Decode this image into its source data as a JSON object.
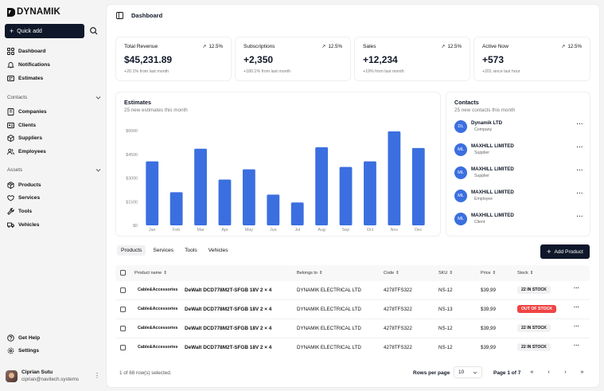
{
  "brand": {
    "name": "DYNAMIK"
  },
  "sidebar": {
    "quick_add": "Quick add",
    "items": [
      {
        "label": "Dashboard",
        "icon": "dashboard-icon"
      },
      {
        "label": "Notifications",
        "icon": "bell-icon"
      },
      {
        "label": "Estimates",
        "icon": "receipt-icon"
      }
    ],
    "contacts_section": "Contacts",
    "contacts_items": [
      {
        "label": "Companies",
        "icon": "building-icon"
      },
      {
        "label": "Clients",
        "icon": "id-card-icon"
      },
      {
        "label": "Suppliers",
        "icon": "box-icon"
      },
      {
        "label": "Employees",
        "icon": "users-icon"
      }
    ],
    "assets_section": "Assets",
    "assets_items": [
      {
        "label": "Products",
        "icon": "package-icon"
      },
      {
        "label": "Services",
        "icon": "handshake-icon"
      },
      {
        "label": "Tools",
        "icon": "wrench-icon"
      },
      {
        "label": "Vehicles",
        "icon": "truck-icon"
      }
    ],
    "bottom_items": [
      {
        "label": "Get Help",
        "icon": "help-icon"
      },
      {
        "label": "Settings",
        "icon": "gear-icon"
      }
    ],
    "user": {
      "name": "Ciprian Sutu",
      "email": "ciprian@navitech.systems"
    }
  },
  "header": {
    "title": "Dashboard"
  },
  "stats": [
    {
      "label": "Total Revenue",
      "trend": "12.5%",
      "value": "$45,231.89",
      "sub": "+20.1% from last month"
    },
    {
      "label": "Subscriptions",
      "trend": "12.5%",
      "value": "+2,350",
      "sub": "+180.1% from last month"
    },
    {
      "label": "Sales",
      "trend": "12.5%",
      "value": "+12,234",
      "sub": "+19% from last month"
    },
    {
      "label": "Active Now",
      "trend": "12.5%",
      "value": "+573",
      "sub": "+201 since last hour"
    }
  ],
  "estimates": {
    "title": "Estimates",
    "subtitle": "25 new estimates this month"
  },
  "chart_data": {
    "type": "bar",
    "categories": [
      "Jan",
      "Feb",
      "Mar",
      "Apr",
      "May",
      "Jun",
      "Jul",
      "Aug",
      "Sep",
      "Oct",
      "Nov",
      "Dec"
    ],
    "values": [
      4050,
      2100,
      4850,
      2900,
      3550,
      1950,
      1450,
      4950,
      3700,
      4050,
      5950,
      4900
    ],
    "ylim": [
      0,
      6000
    ],
    "yticks": [
      "$0",
      "$1500",
      "$3000",
      "$4500",
      "$6000"
    ],
    "color": "#3b6fe0",
    "grid": false
  },
  "contacts": {
    "title": "Contacts",
    "subtitle": "25 new contacts this month",
    "items": [
      {
        "initials": "DL",
        "name": "Dynamik LTD",
        "type": "Company"
      },
      {
        "initials": "ML",
        "name": "MAXHILL LIMITED",
        "type": "Supplier"
      },
      {
        "initials": "ML",
        "name": "MAXHILL LIMITED",
        "type": "Supplier"
      },
      {
        "initials": "ML",
        "name": "MAXHILL LIMITED",
        "type": "Employee"
      },
      {
        "initials": "ML",
        "name": "MAXHILL LIMITED",
        "type": "Client"
      }
    ]
  },
  "tabs": [
    "Products",
    "Services",
    "Tools",
    "Vehicles"
  ],
  "add_product": "Add Product",
  "table": {
    "headers": [
      "Product name",
      "Belongs to",
      "Code",
      "SKU",
      "Price",
      "Stock"
    ],
    "rows": [
      {
        "category": "Cable&Accessories",
        "name": "DeWalt DCD778M2T-SFGB 18V 2 × 4",
        "belongs": "DYNAMIK ELECTRICAL LTD",
        "code": "4278TFS322",
        "sku": "NS-12",
        "price": "$39,99",
        "stock": "22 IN STOCK",
        "stock_status": "in"
      },
      {
        "category": "Cable&Accessories",
        "name": "DeWalt DCD778M2T-SFGB 18V 2 × 4",
        "belongs": "DYNAMIK ELECTRICAL LTD",
        "code": "4278TFS322",
        "sku": "NS-13",
        "price": "$39,99",
        "stock": "OUT OF STOCK",
        "stock_status": "out"
      },
      {
        "category": "Cable&Accessories",
        "name": "DeWalt DCD778M2T-SFGB 18V 2 × 4",
        "belongs": "DYNAMIK ELECTRICAL LTD",
        "code": "4278TFS322",
        "sku": "NS-12",
        "price": "$39,99",
        "stock": "22 IN STOCK",
        "stock_status": "in"
      },
      {
        "category": "Cable&Accessories",
        "name": "DeWalt DCD778M2T-SFGB 18V 2 × 4",
        "belongs": "DYNAMIK ELECTRICAL LTD",
        "code": "4278TFS322",
        "sku": "NS-12",
        "price": "$39,99",
        "stock": "22 IN STOCK",
        "stock_status": "in"
      }
    ]
  },
  "footer": {
    "selected": "1 of 68 row(s) selected.",
    "rows_per_page_label": "Rows per page",
    "rows_per_page": "10",
    "page_info": "Page 1 of 7"
  }
}
